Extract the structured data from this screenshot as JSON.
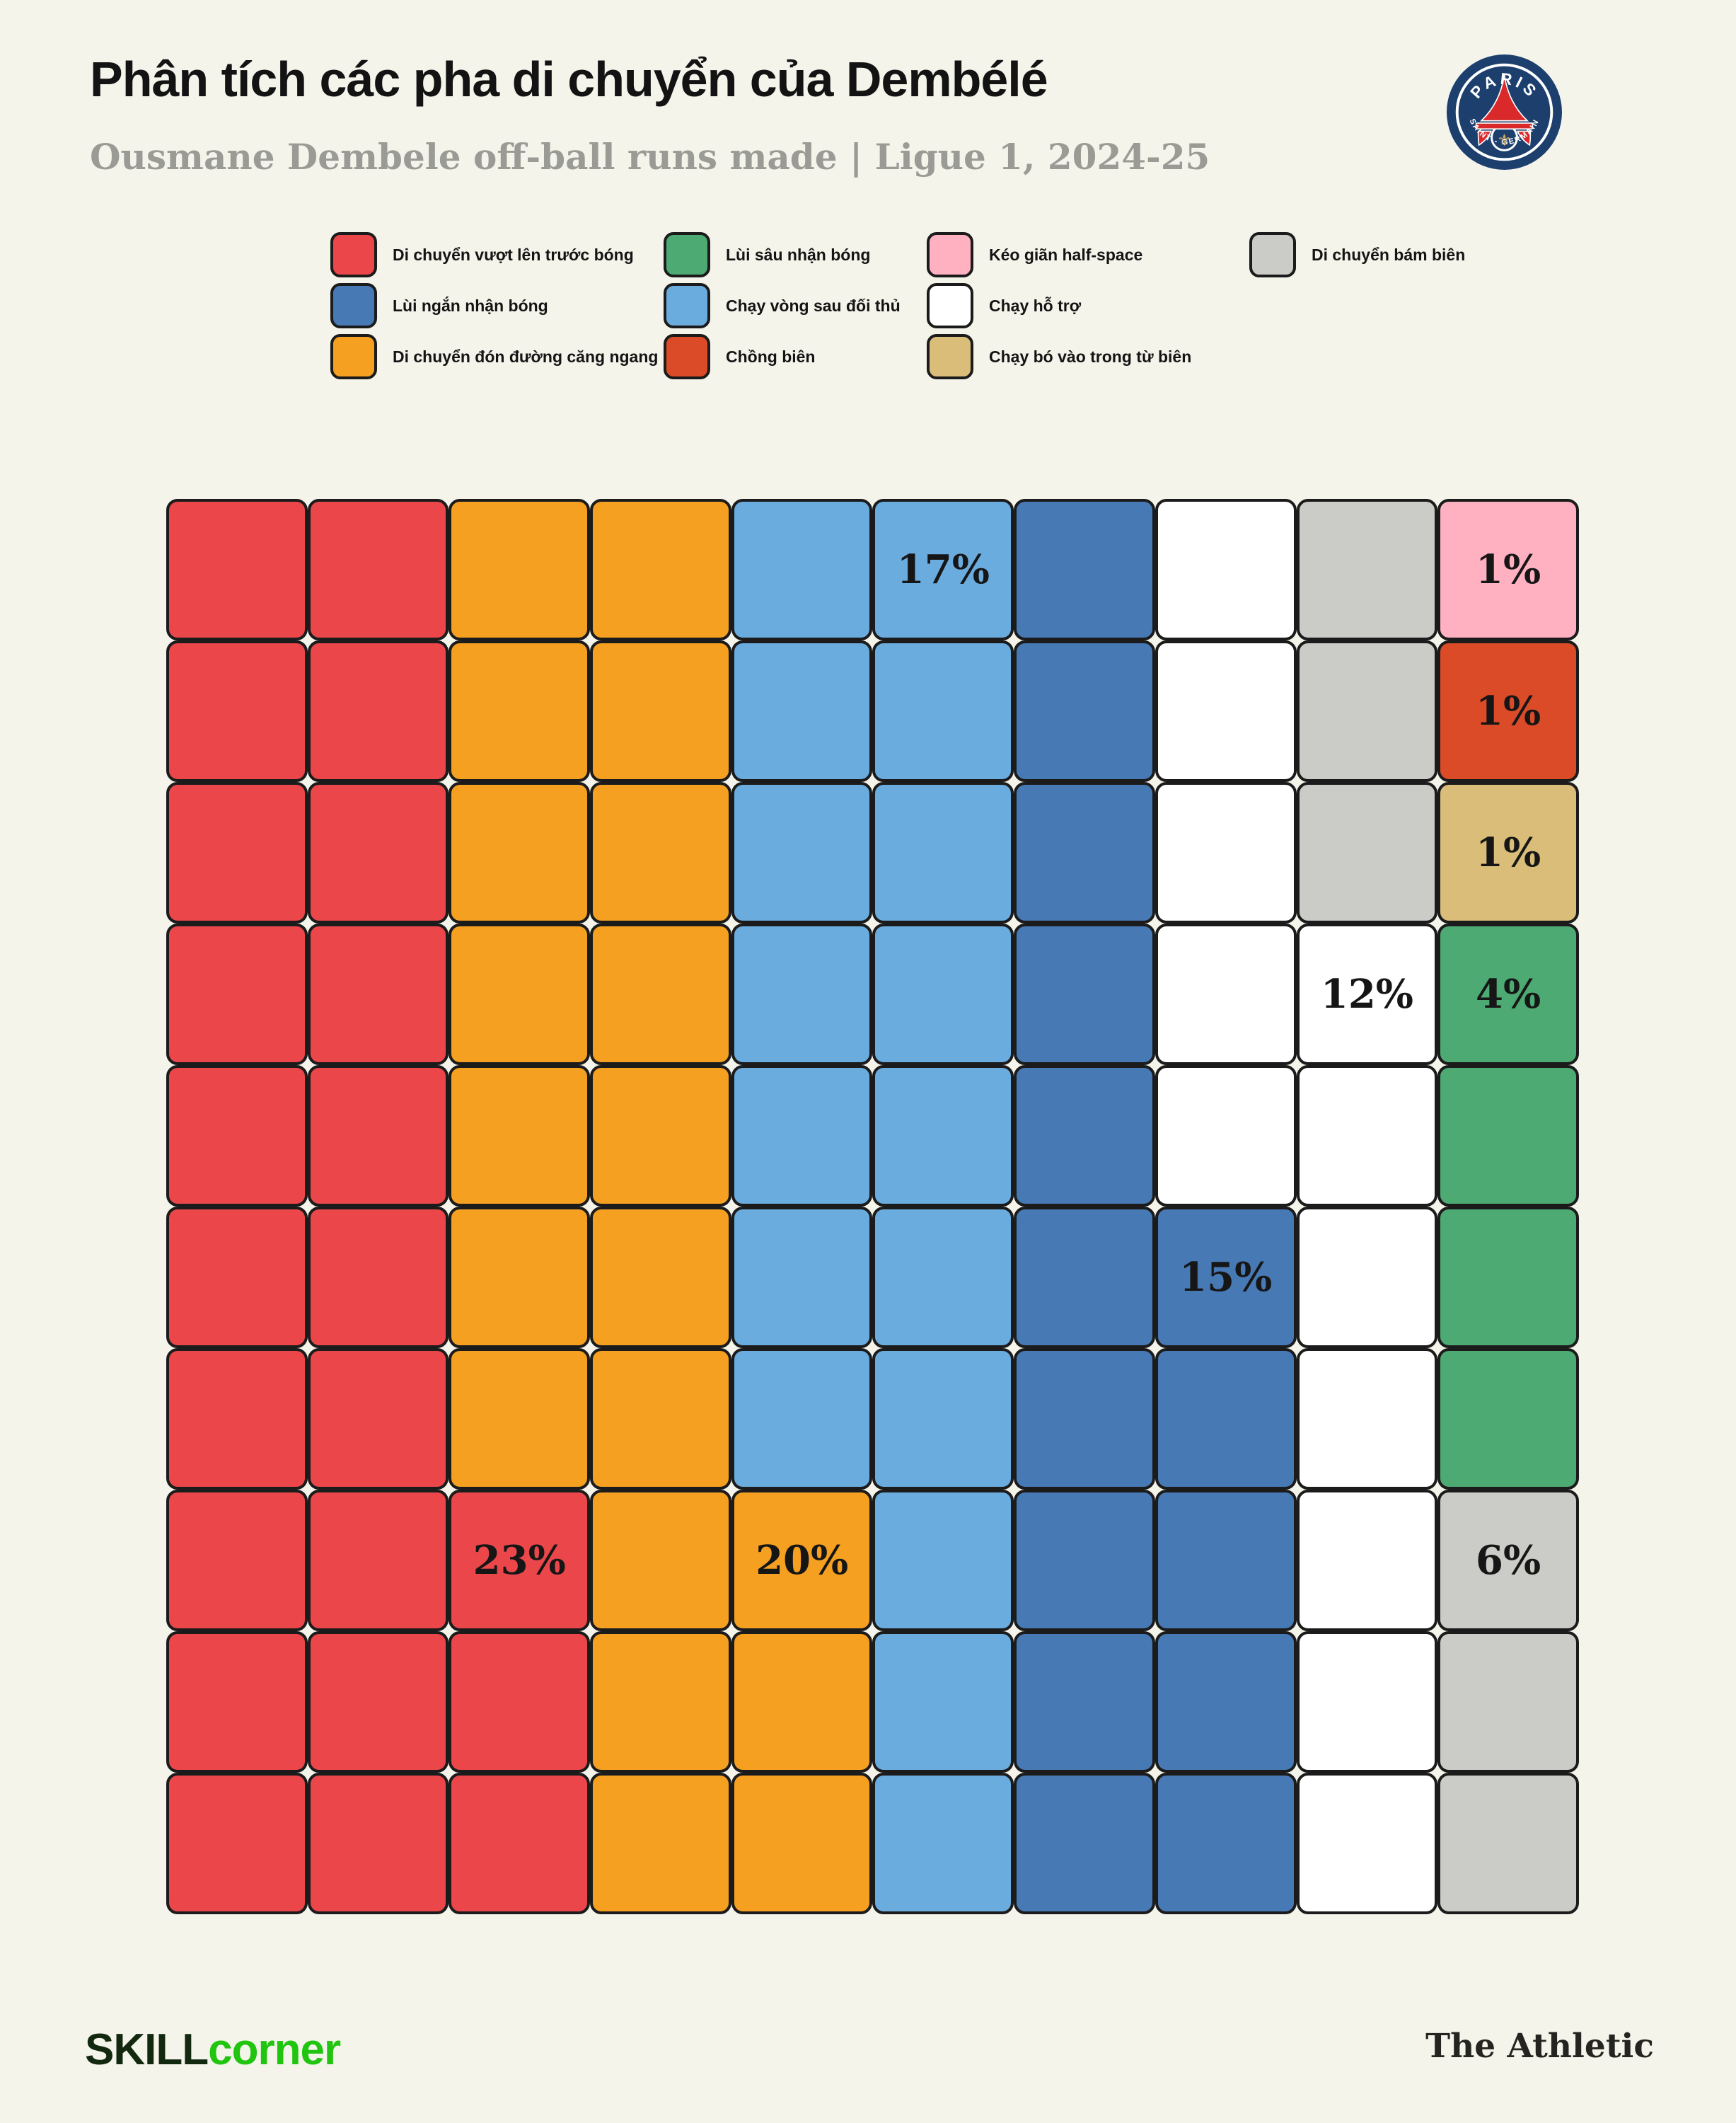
{
  "page": {
    "background": "#F5F4EB",
    "grid_line_color": "#1B1B1B"
  },
  "header": {
    "title": "Phân tích các pha di chuyển của Dembélé",
    "subtitle": "Ousmane Dembele off-ball runs made | Ligue 1, 2024-25"
  },
  "badge": {
    "club": "Paris Saint-Germain",
    "top_text": "PARIS",
    "bottom_text": "SAINT - GERMAIN",
    "colors": {
      "navy": "#1C3F6E",
      "red": "#D9292B",
      "gold": "#C9A45C",
      "white": "#FFFFFF"
    }
  },
  "legend": {
    "rows_per_column": 3,
    "items": [
      {
        "key": "red",
        "label": "Di chuyển vượt lên trước bóng",
        "color": "#EB474B"
      },
      {
        "key": "darkblue",
        "label": "Lùi ngắn nhận bóng",
        "color": "#4779B5"
      },
      {
        "key": "orange",
        "label": "Di chuyển đón đường căng ngang",
        "color": "#F5A021"
      },
      {
        "key": "green",
        "label": "Lùi sâu nhận bóng",
        "color": "#4CAA72"
      },
      {
        "key": "lightblue",
        "label": "Chạy vòng sau đối thủ",
        "color": "#6BACDE"
      },
      {
        "key": "redorange",
        "label": "Chồng biên",
        "color": "#DB4B27"
      },
      {
        "key": "pink",
        "label": "Kéo giãn half-space",
        "color": "#FFB1C2"
      },
      {
        "key": "white",
        "label": "Chạy hỗ trợ",
        "color": "#FFFFFF"
      },
      {
        "key": "tan",
        "label": "Chạy bó vào trong từ biên",
        "color": "#D9BD79"
      },
      {
        "key": "gray",
        "label": "Di chuyển bám biên",
        "color": "#CBCBC8"
      }
    ]
  },
  "chart_data": {
    "type": "waffle",
    "title": "Phân tích các pha di chuyển của Dembélé",
    "subtitle": "Ousmane Dembele off-ball runs made | Ligue 1, 2024-25",
    "grid": {
      "rows": 10,
      "cols": 10,
      "cell_unit_percent": 1
    },
    "series": [
      {
        "name": "Di chuyển vượt lên trước bóng",
        "key": "red",
        "percent": 23
      },
      {
        "name": "Di chuyển đón đường căng ngang",
        "key": "orange",
        "percent": 20
      },
      {
        "name": "Chạy vòng sau đối thủ",
        "key": "lightblue",
        "percent": 17
      },
      {
        "name": "Lùi ngắn nhận bóng",
        "key": "darkblue",
        "percent": 15
      },
      {
        "name": "Chạy hỗ trợ",
        "key": "white",
        "percent": 12
      },
      {
        "name": "Di chuyển bám biên",
        "key": "gray",
        "percent": 6
      },
      {
        "name": "Lùi sâu nhận bóng",
        "key": "green",
        "percent": 4
      },
      {
        "name": "Kéo giãn half-space",
        "key": "pink",
        "percent": 1
      },
      {
        "name": "Chồng biên",
        "key": "redorange",
        "percent": 1
      },
      {
        "name": "Chạy bó vào trong từ biên",
        "key": "tan",
        "percent": 1
      }
    ],
    "cells": [
      [
        "red",
        "red",
        "orange",
        "orange",
        "lightblue",
        "lightblue",
        "darkblue",
        "white",
        "gray",
        "pink"
      ],
      [
        "red",
        "red",
        "orange",
        "orange",
        "lightblue",
        "lightblue",
        "darkblue",
        "white",
        "gray",
        "redorange"
      ],
      [
        "red",
        "red",
        "orange",
        "orange",
        "lightblue",
        "lightblue",
        "darkblue",
        "white",
        "gray",
        "tan"
      ],
      [
        "red",
        "red",
        "orange",
        "orange",
        "lightblue",
        "lightblue",
        "darkblue",
        "white",
        "white",
        "green"
      ],
      [
        "red",
        "red",
        "orange",
        "orange",
        "lightblue",
        "lightblue",
        "darkblue",
        "white",
        "white",
        "green"
      ],
      [
        "red",
        "red",
        "orange",
        "orange",
        "lightblue",
        "lightblue",
        "darkblue",
        "darkblue",
        "white",
        "green"
      ],
      [
        "red",
        "red",
        "orange",
        "orange",
        "lightblue",
        "lightblue",
        "darkblue",
        "darkblue",
        "white",
        "green"
      ],
      [
        "red",
        "red",
        "red",
        "orange",
        "orange",
        "lightblue",
        "darkblue",
        "darkblue",
        "white",
        "gray"
      ],
      [
        "red",
        "red",
        "red",
        "orange",
        "orange",
        "lightblue",
        "darkblue",
        "darkblue",
        "white",
        "gray"
      ],
      [
        "red",
        "red",
        "red",
        "orange",
        "orange",
        "lightblue",
        "darkblue",
        "darkblue",
        "white",
        "gray"
      ]
    ],
    "cell_labels": [
      {
        "row": 0,
        "col": 5,
        "text": "17%"
      },
      {
        "row": 0,
        "col": 9,
        "text": "1%"
      },
      {
        "row": 1,
        "col": 9,
        "text": "1%"
      },
      {
        "row": 2,
        "col": 9,
        "text": "1%"
      },
      {
        "row": 3,
        "col": 8,
        "text": "12%"
      },
      {
        "row": 3,
        "col": 9,
        "text": "4%"
      },
      {
        "row": 5,
        "col": 7,
        "text": "15%"
      },
      {
        "row": 7,
        "col": 2,
        "text": "23%"
      },
      {
        "row": 7,
        "col": 4,
        "text": "20%"
      },
      {
        "row": 7,
        "col": 9,
        "text": "6%"
      }
    ],
    "legend_position": "top",
    "grid_lines": "on"
  },
  "footer": {
    "skillcorner_part1": "SKILL",
    "skillcorner_part2": "corner",
    "skillcorner_colors": {
      "part1": "#12290F",
      "part2": "#21C50F"
    },
    "athletic": "The Athletic"
  }
}
